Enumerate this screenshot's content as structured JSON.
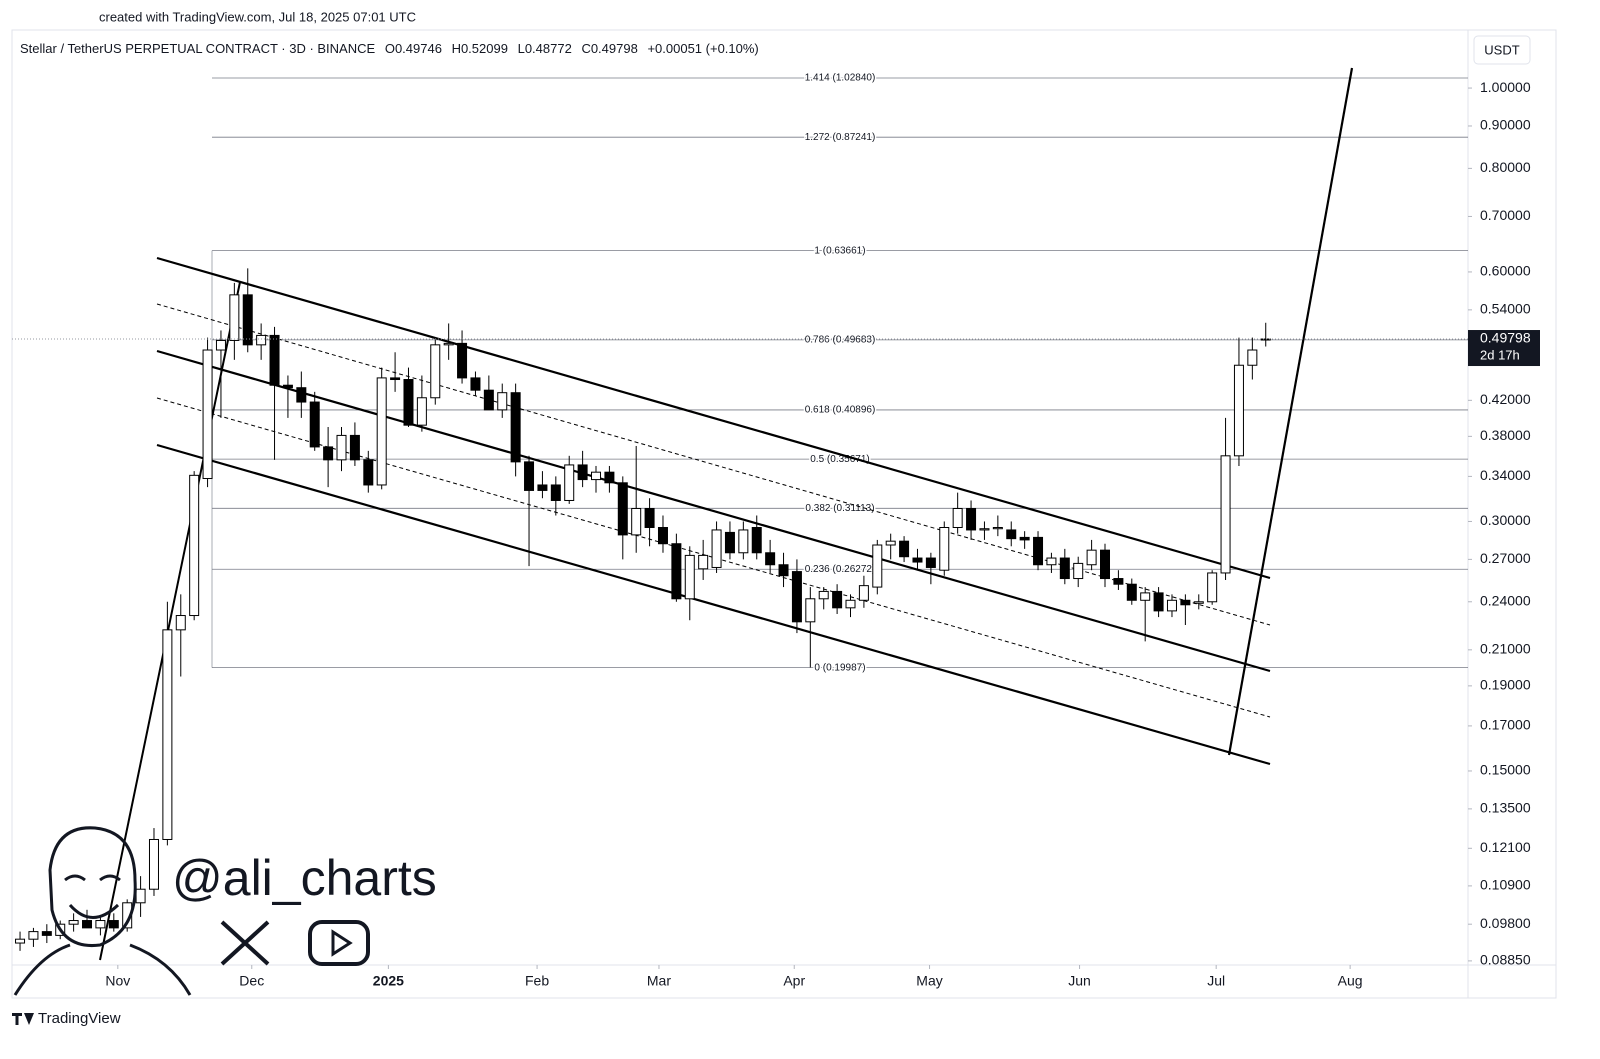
{
  "created": "created with TradingView.com, Jul 18, 2025 07:01 UTC",
  "brand": "TradingView",
  "watermark": "@ali_charts",
  "chart_data": {
    "type": "candlestick",
    "legend": {
      "symbol": "Stellar / TetherUS PERPETUAL CONTRACT · 3D · BINANCE",
      "fields": [
        "O",
        "H",
        "L",
        "C"
      ],
      "change": "+0.00051 (+0.10%)"
    },
    "currency": "USDT",
    "countdown": "2d 17h",
    "log_scale": true,
    "up_color": "#ffffff",
    "down_color": "#000000",
    "border_color": "#000000",
    "candles": [
      [
        0.093,
        0.096,
        0.091,
        0.094
      ],
      [
        0.094,
        0.097,
        0.092,
        0.096
      ],
      [
        0.096,
        0.098,
        0.093,
        0.095
      ],
      [
        0.095,
        0.099,
        0.094,
        0.098
      ],
      [
        0.098,
        0.101,
        0.096,
        0.099
      ],
      [
        0.099,
        0.102,
        0.097,
        0.097
      ],
      [
        0.097,
        0.1,
        0.095,
        0.099
      ],
      [
        0.099,
        0.101,
        0.096,
        0.097
      ],
      [
        0.097,
        0.105,
        0.096,
        0.104
      ],
      [
        0.104,
        0.112,
        0.1,
        0.108
      ],
      [
        0.108,
        0.128,
        0.106,
        0.124
      ],
      [
        0.124,
        0.24,
        0.122,
        0.222
      ],
      [
        0.222,
        0.245,
        0.195,
        0.231
      ],
      [
        0.231,
        0.345,
        0.228,
        0.341
      ],
      [
        0.338,
        0.5,
        0.33,
        0.483
      ],
      [
        0.483,
        0.51,
        0.4,
        0.496
      ],
      [
        0.496,
        0.582,
        0.47,
        0.563
      ],
      [
        0.563,
        0.606,
        0.48,
        0.49
      ],
      [
        0.49,
        0.52,
        0.47,
        0.503
      ],
      [
        0.503,
        0.515,
        0.356,
        0.438
      ],
      [
        0.438,
        0.45,
        0.4,
        0.435
      ],
      [
        0.435,
        0.455,
        0.4,
        0.418
      ],
      [
        0.418,
        0.43,
        0.365,
        0.369
      ],
      [
        0.369,
        0.39,
        0.33,
        0.356
      ],
      [
        0.356,
        0.39,
        0.345,
        0.381
      ],
      [
        0.381,
        0.395,
        0.35,
        0.356
      ],
      [
        0.356,
        0.365,
        0.325,
        0.332
      ],
      [
        0.332,
        0.46,
        0.328,
        0.447
      ],
      [
        0.447,
        0.48,
        0.43,
        0.445
      ],
      [
        0.445,
        0.46,
        0.39,
        0.392
      ],
      [
        0.392,
        0.45,
        0.385,
        0.423
      ],
      [
        0.423,
        0.5,
        0.415,
        0.49
      ],
      [
        0.49,
        0.52,
        0.47,
        0.492
      ],
      [
        0.492,
        0.51,
        0.44,
        0.447
      ],
      [
        0.447,
        0.455,
        0.425,
        0.432
      ],
      [
        0.432,
        0.45,
        0.41,
        0.409
      ],
      [
        0.409,
        0.44,
        0.4,
        0.429
      ],
      [
        0.429,
        0.44,
        0.34,
        0.354
      ],
      [
        0.354,
        0.36,
        0.265,
        0.327
      ],
      [
        0.332,
        0.345,
        0.32,
        0.327
      ],
      [
        0.332,
        0.34,
        0.305,
        0.318
      ],
      [
        0.318,
        0.36,
        0.315,
        0.351
      ],
      [
        0.351,
        0.365,
        0.33,
        0.337
      ],
      [
        0.337,
        0.35,
        0.325,
        0.344
      ],
      [
        0.344,
        0.35,
        0.325,
        0.334
      ],
      [
        0.334,
        0.34,
        0.27,
        0.289
      ],
      [
        0.289,
        0.37,
        0.275,
        0.311
      ],
      [
        0.311,
        0.32,
        0.28,
        0.295
      ],
      [
        0.295,
        0.305,
        0.275,
        0.282
      ],
      [
        0.282,
        0.29,
        0.24,
        0.242
      ],
      [
        0.242,
        0.28,
        0.228,
        0.273
      ],
      [
        0.263,
        0.285,
        0.255,
        0.273
      ],
      [
        0.264,
        0.3,
        0.26,
        0.293
      ],
      [
        0.291,
        0.3,
        0.27,
        0.275
      ],
      [
        0.275,
        0.3,
        0.27,
        0.293
      ],
      [
        0.295,
        0.305,
        0.27,
        0.275
      ],
      [
        0.275,
        0.285,
        0.26,
        0.266
      ],
      [
        0.266,
        0.275,
        0.25,
        0.258
      ],
      [
        0.261,
        0.27,
        0.22,
        0.227
      ],
      [
        0.227,
        0.25,
        0.2,
        0.242
      ],
      [
        0.242,
        0.25,
        0.235,
        0.247
      ],
      [
        0.247,
        0.252,
        0.232,
        0.236
      ],
      [
        0.236,
        0.245,
        0.23,
        0.241
      ],
      [
        0.241,
        0.258,
        0.236,
        0.251
      ],
      [
        0.25,
        0.285,
        0.245,
        0.281
      ],
      [
        0.281,
        0.29,
        0.27,
        0.284
      ],
      [
        0.284,
        0.288,
        0.268,
        0.272
      ],
      [
        0.271,
        0.278,
        0.262,
        0.268
      ],
      [
        0.271,
        0.275,
        0.252,
        0.264
      ],
      [
        0.262,
        0.3,
        0.258,
        0.295
      ],
      [
        0.295,
        0.325,
        0.29,
        0.311
      ],
      [
        0.311,
        0.318,
        0.285,
        0.293
      ],
      [
        0.293,
        0.3,
        0.285,
        0.294
      ],
      [
        0.294,
        0.305,
        0.288,
        0.295
      ],
      [
        0.293,
        0.3,
        0.28,
        0.286
      ],
      [
        0.287,
        0.292,
        0.278,
        0.285
      ],
      [
        0.287,
        0.292,
        0.262,
        0.266
      ],
      [
        0.266,
        0.275,
        0.26,
        0.271
      ],
      [
        0.271,
        0.278,
        0.252,
        0.256
      ],
      [
        0.256,
        0.272,
        0.25,
        0.267
      ],
      [
        0.266,
        0.285,
        0.262,
        0.277
      ],
      [
        0.277,
        0.282,
        0.25,
        0.256
      ],
      [
        0.256,
        0.262,
        0.248,
        0.252
      ],
      [
        0.252,
        0.256,
        0.238,
        0.241
      ],
      [
        0.241,
        0.25,
        0.215,
        0.246
      ],
      [
        0.246,
        0.25,
        0.23,
        0.234
      ],
      [
        0.234,
        0.245,
        0.23,
        0.241
      ],
      [
        0.241,
        0.245,
        0.225,
        0.238
      ],
      [
        0.239,
        0.245,
        0.235,
        0.24
      ],
      [
        0.24,
        0.262,
        0.238,
        0.26
      ],
      [
        0.26,
        0.4,
        0.255,
        0.36
      ],
      [
        0.36,
        0.5,
        0.35,
        0.463
      ],
      [
        0.463,
        0.5,
        0.445,
        0.483
      ],
      [
        0.49746,
        0.52099,
        0.48772,
        0.49798
      ]
    ],
    "fib_levels": [
      {
        "value": 1.0284,
        "label": "1.414 (1.02840)"
      },
      {
        "value": 0.87241,
        "label": "1.272 (0.87241)"
      },
      {
        "value": 0.63661,
        "label": "1 (0.63661)"
      },
      {
        "value": 0.49683,
        "label": "0.786 (0.49683)"
      },
      {
        "value": 0.40896,
        "label": "0.618 (0.40896)"
      },
      {
        "value": 0.35671,
        "label": "0.5 (0.35671)"
      },
      {
        "value": 0.31113,
        "label": "0.382 (0.31113)"
      },
      {
        "value": 0.26272,
        "label": "0.236 (0.26272)"
      },
      {
        "value": 0.19987,
        "label": "0 (0.19987)"
      }
    ],
    "xlim": [
      -0.6,
      108.1
    ],
    "xticks": [
      {
        "value": 7.3,
        "label": "Nov"
      },
      {
        "value": 17.3,
        "label": "Dec"
      },
      {
        "value": 27.5,
        "label": "2025"
      },
      {
        "value": 38.6,
        "label": "Feb"
      },
      {
        "value": 47.7,
        "label": "Mar"
      },
      {
        "value": 57.8,
        "label": "Apr"
      },
      {
        "value": 67.9,
        "label": "May"
      },
      {
        "value": 79.1,
        "label": "Jun"
      },
      {
        "value": 89.3,
        "label": "Jul"
      },
      {
        "value": 99.3,
        "label": "Aug"
      }
    ],
    "ylim": [
      0.0805,
      1.175
    ],
    "yticks": [
      {
        "value": 1,
        "label": "1.00000"
      },
      {
        "value": 0.9,
        "label": "0.90000"
      },
      {
        "value": 0.8,
        "label": "0.80000"
      },
      {
        "value": 0.7,
        "label": "0.70000"
      },
      {
        "value": 0.6,
        "label": "0.60000"
      },
      {
        "value": 0.54,
        "label": "0.54000"
      },
      {
        "value": 0.42,
        "label": "0.42000"
      },
      {
        "value": 0.38,
        "label": "0.38000"
      },
      {
        "value": 0.34,
        "label": "0.34000"
      },
      {
        "value": 0.3,
        "label": "0.30000"
      },
      {
        "value": 0.27,
        "label": "0.27000"
      },
      {
        "value": 0.24,
        "label": "0.24000"
      },
      {
        "value": 0.21,
        "label": "0.21000"
      },
      {
        "value": 0.19,
        "label": "0.19000"
      },
      {
        "value": 0.17,
        "label": "0.17000"
      },
      {
        "value": 0.15,
        "label": "0.15000"
      },
      {
        "value": 0.135,
        "label": "0.13500"
      },
      {
        "value": 0.121,
        "label": "0.12100"
      },
      {
        "value": 0.109,
        "label": "0.10900"
      },
      {
        "value": 0.098,
        "label": "0.09800"
      },
      {
        "value": 0.0885,
        "label": "0.08850"
      }
    ]
  }
}
